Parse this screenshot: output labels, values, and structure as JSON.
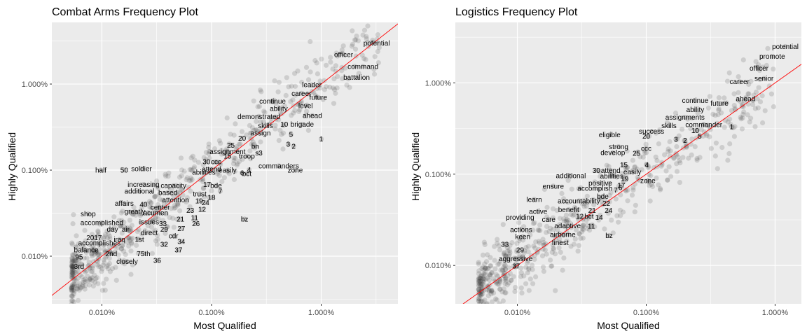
{
  "chart_data": [
    {
      "type": "scatter",
      "title": "Combat Arms Frequency Plot",
      "xlabel": "Most Qualified",
      "ylabel": "Highly Qualified",
      "x_scale": "log10",
      "y_scale": "log10",
      "xlim": [
        0.0035,
        5.0
      ],
      "ylim": [
        0.0028,
        5.2
      ],
      "x_ticks": [
        {
          "v": 0.01,
          "label": "0.010%"
        },
        {
          "v": 0.1,
          "label": "0.100%"
        },
        {
          "v": 1.0,
          "label": "1.000%"
        }
      ],
      "y_ticks": [
        {
          "v": 0.01,
          "label": "0.010%"
        },
        {
          "v": 0.1,
          "label": "0.100%"
        },
        {
          "v": 1.0,
          "label": "1.000%"
        }
      ],
      "reference_line": "y = x",
      "reference_color": "#ff0000",
      "point_color": "#333333",
      "panel_background": "#ebebeb",
      "grid": true,
      "labeled_points": [
        {
          "word": "potential",
          "x": 3.2,
          "y": 3.0
        },
        {
          "word": "officer",
          "x": 1.6,
          "y": 2.2
        },
        {
          "word": "command",
          "x": 2.4,
          "y": 1.6
        },
        {
          "word": "battalion",
          "x": 2.1,
          "y": 1.2
        },
        {
          "word": "leader",
          "x": 0.82,
          "y": 0.98
        },
        {
          "word": "career",
          "x": 0.66,
          "y": 0.78
        },
        {
          "word": "future",
          "x": 0.94,
          "y": 0.7
        },
        {
          "word": "continue",
          "x": 0.36,
          "y": 0.63
        },
        {
          "word": "level",
          "x": 0.72,
          "y": 0.56
        },
        {
          "word": "ability",
          "x": 0.41,
          "y": 0.52
        },
        {
          "word": "ahead",
          "x": 0.83,
          "y": 0.43
        },
        {
          "word": "demonstrated",
          "x": 0.27,
          "y": 0.42
        },
        {
          "word": "10",
          "x": 0.46,
          "y": 0.34
        },
        {
          "word": "brigade",
          "x": 0.67,
          "y": 0.34
        },
        {
          "word": "skills",
          "x": 0.31,
          "y": 0.33
        },
        {
          "word": "assign",
          "x": 0.28,
          "y": 0.27
        },
        {
          "word": "5",
          "x": 0.53,
          "y": 0.26
        },
        {
          "word": "1",
          "x": 1.0,
          "y": 0.23
        },
        {
          "word": "20",
          "x": 0.19,
          "y": 0.235
        },
        {
          "word": "3",
          "x": 0.5,
          "y": 0.2
        },
        {
          "word": "2",
          "x": 0.56,
          "y": 0.19
        },
        {
          "word": "25",
          "x": 0.15,
          "y": 0.195
        },
        {
          "word": "bn",
          "x": 0.25,
          "y": 0.19
        },
        {
          "word": "assignment",
          "x": 0.14,
          "y": 0.165
        },
        {
          "word": "s3",
          "x": 0.27,
          "y": 0.158
        },
        {
          "word": "15",
          "x": 0.14,
          "y": 0.145
        },
        {
          "word": "troop",
          "x": 0.21,
          "y": 0.145
        },
        {
          "word": "30",
          "x": 0.09,
          "y": 0.125
        },
        {
          "word": "ccc",
          "x": 0.11,
          "y": 0.125
        },
        {
          "word": "commanders",
          "x": 0.41,
          "y": 0.112
        },
        {
          "word": "attend",
          "x": 0.1,
          "y": 0.103
        },
        {
          "word": "easily",
          "x": 0.14,
          "y": 0.1
        },
        {
          "word": "zone",
          "x": 0.58,
          "y": 0.1
        },
        {
          "word": "4",
          "x": 0.22,
          "y": 0.101
        },
        {
          "word": "abilities",
          "x": 0.085,
          "y": 0.095
        },
        {
          "word": "6",
          "x": 0.19,
          "y": 0.093
        },
        {
          "word": "bct",
          "x": 0.21,
          "y": 0.091
        },
        {
          "word": "half",
          "x": 0.0098,
          "y": 0.1
        },
        {
          "word": "50",
          "x": 0.016,
          "y": 0.1
        },
        {
          "word": "soldier",
          "x": 0.023,
          "y": 0.104
        },
        {
          "word": "increasing",
          "x": 0.024,
          "y": 0.068
        },
        {
          "word": "capacity",
          "x": 0.045,
          "y": 0.066
        },
        {
          "word": "17",
          "x": 0.091,
          "y": 0.068
        },
        {
          "word": "bde",
          "x": 0.11,
          "y": 0.066
        },
        {
          "word": "additional",
          "x": 0.022,
          "y": 0.057
        },
        {
          "word": "based",
          "x": 0.04,
          "y": 0.055
        },
        {
          "word": "trust",
          "x": 0.078,
          "y": 0.053
        },
        {
          "word": "7",
          "x": 0.12,
          "y": 0.057
        },
        {
          "word": "18",
          "x": 0.1,
          "y": 0.048
        },
        {
          "word": "attention",
          "x": 0.047,
          "y": 0.045
        },
        {
          "word": "19",
          "x": 0.077,
          "y": 0.044
        },
        {
          "word": "24",
          "x": 0.088,
          "y": 0.042
        },
        {
          "word": "affairs",
          "x": 0.016,
          "y": 0.041
        },
        {
          "word": "40",
          "x": 0.024,
          "y": 0.04
        },
        {
          "word": "center",
          "x": 0.034,
          "y": 0.037
        },
        {
          "word": "23",
          "x": 0.064,
          "y": 0.034
        },
        {
          "word": "12",
          "x": 0.082,
          "y": 0.035
        },
        {
          "word": "greatly",
          "x": 0.02,
          "y": 0.033
        },
        {
          "word": "acumen",
          "x": 0.031,
          "y": 0.032
        },
        {
          "word": "shop",
          "x": 0.0075,
          "y": 0.031
        },
        {
          "word": "11",
          "x": 0.07,
          "y": 0.028
        },
        {
          "word": "21",
          "x": 0.052,
          "y": 0.027
        },
        {
          "word": "bz",
          "x": 0.2,
          "y": 0.027
        },
        {
          "word": "issues",
          "x": 0.027,
          "y": 0.025
        },
        {
          "word": "33",
          "x": 0.036,
          "y": 0.024
        },
        {
          "word": "26",
          "x": 0.072,
          "y": 0.024
        },
        {
          "word": "accomplished",
          "x": 0.01,
          "y": 0.0245
        },
        {
          "word": "27",
          "x": 0.053,
          "y": 0.021
        },
        {
          "word": "29",
          "x": 0.037,
          "y": 0.0205
        },
        {
          "word": "day",
          "x": 0.0125,
          "y": 0.0205
        },
        {
          "word": "air",
          "x": 0.0165,
          "y": 0.0205
        },
        {
          "word": "direct",
          "x": 0.027,
          "y": 0.0188
        },
        {
          "word": "cdr",
          "x": 0.045,
          "y": 0.0172
        },
        {
          "word": "2017",
          "x": 0.0085,
          "y": 0.0165
        },
        {
          "word": "iraq",
          "x": 0.0145,
          "y": 0.0157
        },
        {
          "word": "1st",
          "x": 0.022,
          "y": 0.0157
        },
        {
          "word": "34",
          "x": 0.053,
          "y": 0.0148
        },
        {
          "word": "accomplishes",
          "x": 0.0095,
          "y": 0.0143
        },
        {
          "word": "32",
          "x": 0.037,
          "y": 0.0137
        },
        {
          "word": "balance",
          "x": 0.0072,
          "y": 0.0118
        },
        {
          "word": "37",
          "x": 0.05,
          "y": 0.0118
        },
        {
          "word": "2nd",
          "x": 0.0122,
          "y": 0.0107
        },
        {
          "word": "75th",
          "x": 0.024,
          "y": 0.0107
        },
        {
          "word": "95",
          "x": 0.0062,
          "y": 0.0098
        },
        {
          "word": "closely",
          "x": 0.017,
          "y": 0.0087
        },
        {
          "word": "36",
          "x": 0.032,
          "y": 0.0089
        },
        {
          "word": "3rd",
          "x": 0.0062,
          "y": 0.0076
        }
      ]
    },
    {
      "type": "scatter",
      "title": "Logistics Frequency Plot",
      "xlabel": "Most Qualified",
      "ylabel": "Highly Qualified",
      "x_scale": "log10",
      "y_scale": "log10",
      "xlim": [
        0.0033,
        1.6
      ],
      "ylim": [
        0.0038,
        4.6
      ],
      "x_ticks": [
        {
          "v": 0.01,
          "label": "0.010%"
        },
        {
          "v": 0.1,
          "label": "0.100%"
        },
        {
          "v": 1.0,
          "label": "1.000%"
        }
      ],
      "y_ticks": [
        {
          "v": 0.01,
          "label": "0.010%"
        },
        {
          "v": 0.1,
          "label": "0.100%"
        },
        {
          "v": 1.0,
          "label": "1.000%"
        }
      ],
      "reference_line": "y = x",
      "reference_color": "#ff0000",
      "point_color": "#333333",
      "panel_background": "#ebebeb",
      "grid": true,
      "labeled_points": [
        {
          "word": "potential",
          "x": 1.2,
          "y": 2.5
        },
        {
          "word": "promote",
          "x": 0.95,
          "y": 1.95
        },
        {
          "word": "officer",
          "x": 0.75,
          "y": 1.45
        },
        {
          "word": "senior",
          "x": 0.82,
          "y": 1.12
        },
        {
          "word": "career",
          "x": 0.53,
          "y": 1.03
        },
        {
          "word": "ahead",
          "x": 0.59,
          "y": 0.67
        },
        {
          "word": "continue",
          "x": 0.24,
          "y": 0.64
        },
        {
          "word": "future",
          "x": 0.37,
          "y": 0.6
        },
        {
          "word": "ability",
          "x": 0.24,
          "y": 0.51
        },
        {
          "word": "assignments",
          "x": 0.2,
          "y": 0.42
        },
        {
          "word": "commander",
          "x": 0.28,
          "y": 0.35
        },
        {
          "word": "skills",
          "x": 0.15,
          "y": 0.34
        },
        {
          "word": "1",
          "x": 0.46,
          "y": 0.33
        },
        {
          "word": "success",
          "x": 0.11,
          "y": 0.295
        },
        {
          "word": "10",
          "x": 0.24,
          "y": 0.3
        },
        {
          "word": "20",
          "x": 0.1,
          "y": 0.26
        },
        {
          "word": "5",
          "x": 0.26,
          "y": 0.26
        },
        {
          "word": "eligible",
          "x": 0.052,
          "y": 0.27
        },
        {
          "word": "3",
          "x": 0.17,
          "y": 0.24
        },
        {
          "word": "2",
          "x": 0.2,
          "y": 0.235
        },
        {
          "word": "strong",
          "x": 0.061,
          "y": 0.2
        },
        {
          "word": "ccc",
          "x": 0.1,
          "y": 0.192
        },
        {
          "word": "develop",
          "x": 0.055,
          "y": 0.172
        },
        {
          "word": "25",
          "x": 0.084,
          "y": 0.17
        },
        {
          "word": "15",
          "x": 0.067,
          "y": 0.127
        },
        {
          "word": "4",
          "x": 0.101,
          "y": 0.127
        },
        {
          "word": "30",
          "x": 0.041,
          "y": 0.11
        },
        {
          "word": "attend",
          "x": 0.053,
          "y": 0.11
        },
        {
          "word": "easily",
          "x": 0.078,
          "y": 0.106
        },
        {
          "word": "abilities",
          "x": 0.054,
          "y": 0.095
        },
        {
          "word": "19",
          "x": 0.068,
          "y": 0.089
        },
        {
          "word": "additional",
          "x": 0.026,
          "y": 0.096
        },
        {
          "word": "zone",
          "x": 0.103,
          "y": 0.085
        },
        {
          "word": "positive",
          "x": 0.044,
          "y": 0.08
        },
        {
          "word": "17",
          "x": 0.064,
          "y": 0.076
        },
        {
          "word": "ensure",
          "x": 0.019,
          "y": 0.074
        },
        {
          "word": "accomplish",
          "x": 0.04,
          "y": 0.07
        },
        {
          "word": "7",
          "x": 0.058,
          "y": 0.067
        },
        {
          "word": "6",
          "x": 0.063,
          "y": 0.071
        },
        {
          "word": "bde",
          "x": 0.046,
          "y": 0.057
        },
        {
          "word": "learn",
          "x": 0.0135,
          "y": 0.053
        },
        {
          "word": "accountability",
          "x": 0.03,
          "y": 0.051
        },
        {
          "word": "22",
          "x": 0.049,
          "y": 0.048
        },
        {
          "word": "benefit",
          "x": 0.025,
          "y": 0.041
        },
        {
          "word": "21",
          "x": 0.038,
          "y": 0.04
        },
        {
          "word": "24",
          "x": 0.051,
          "y": 0.04
        },
        {
          "word": "active",
          "x": 0.0145,
          "y": 0.039
        },
        {
          "word": "12",
          "x": 0.0305,
          "y": 0.0345
        },
        {
          "word": "bct",
          "x": 0.036,
          "y": 0.0345
        },
        {
          "word": "14",
          "x": 0.043,
          "y": 0.0335
        },
        {
          "word": "providing",
          "x": 0.0105,
          "y": 0.0335
        },
        {
          "word": "care",
          "x": 0.0175,
          "y": 0.032
        },
        {
          "word": "adaptive",
          "x": 0.0245,
          "y": 0.0273
        },
        {
          "word": "11",
          "x": 0.0375,
          "y": 0.027
        },
        {
          "word": "actions",
          "x": 0.0107,
          "y": 0.0247
        },
        {
          "word": "airborne",
          "x": 0.0225,
          "y": 0.0218
        },
        {
          "word": "keen",
          "x": 0.011,
          "y": 0.0207
        },
        {
          "word": "bz",
          "x": 0.0515,
          "y": 0.0213
        },
        {
          "word": "finest",
          "x": 0.0215,
          "y": 0.0178
        },
        {
          "word": "33",
          "x": 0.008,
          "y": 0.0171
        },
        {
          "word": "29",
          "x": 0.0105,
          "y": 0.0148
        },
        {
          "word": "aggressive",
          "x": 0.0097,
          "y": 0.0119
        },
        {
          "word": "37",
          "x": 0.0098,
          "y": 0.0099
        }
      ]
    }
  ]
}
